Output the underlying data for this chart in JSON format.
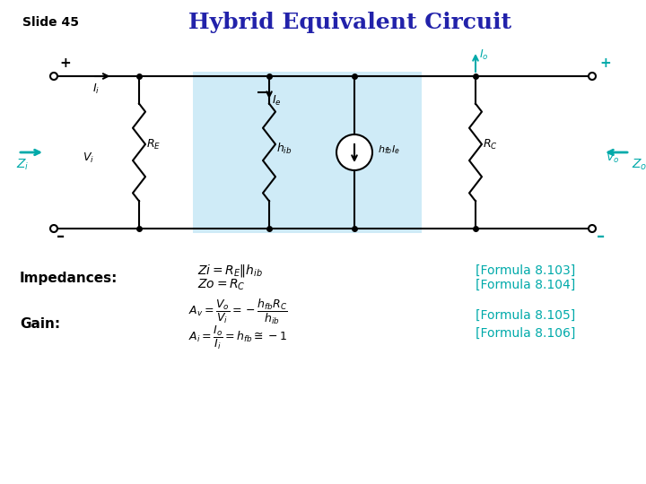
{
  "title": "Hybrid Equivalent Circuit",
  "slide_label": "Slide 45",
  "title_color": "#2222AA",
  "title_fontsize": 18,
  "slide_label_color": "#000000",
  "slide_label_fontsize": 10,
  "bg_color": "#FFFFFF",
  "circuit_bg_color": "#87CEEB",
  "circuit_bg_alpha": 0.4,
  "teal_color": "#00AAAA",
  "black": "#000000",
  "impedances_label": "Impedances:",
  "gain_label": "Gain:",
  "formula_103": "[Formula 8.103]",
  "formula_104": "[Formula 8.104]",
  "formula_105": "[Formula 8.105]",
  "formula_106": "[Formula 8.106]"
}
